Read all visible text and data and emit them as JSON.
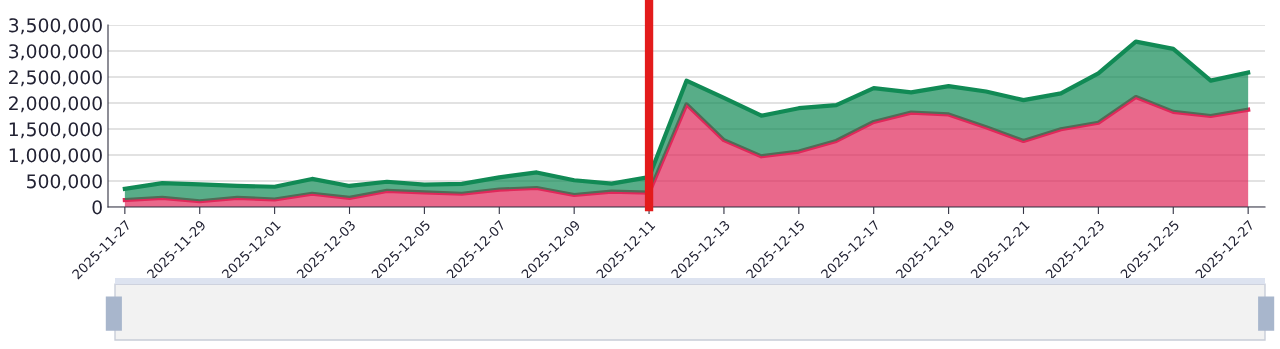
{
  "chart_data": {
    "type": "area",
    "stacked": true,
    "categories": [
      "2025-11-27",
      null,
      "2025-11-29",
      null,
      "2025-12-01",
      null,
      "2025-12-03",
      null,
      "2025-12-05",
      null,
      "2025-12-07",
      null,
      "2025-12-09",
      null,
      "2025-12-11",
      null,
      "2025-12-13",
      null,
      "2025-12-15",
      null,
      "2025-12-17",
      null,
      "2025-12-19",
      null,
      "2025-12-21",
      null,
      "2025-12-23",
      null,
      "2025-12-25",
      null,
      "2025-12-27"
    ],
    "series": [
      {
        "color": "#e0285a",
        "values": [
          135000,
          175000,
          110000,
          175000,
          145000,
          255000,
          175000,
          310000,
          280000,
          255000,
          335000,
          365000,
          230000,
          295000,
          275000,
          1975000,
          1285000,
          975000,
          1065000,
          1270000,
          1635000,
          1815000,
          1780000,
          1535000,
          1270000,
          1495000,
          1620000,
          2115000,
          1830000,
          1750000,
          1870000
        ]
      },
      {
        "color": "#118a55",
        "values": [
          215000,
          285000,
          325000,
          230000,
          245000,
          285000,
          230000,
          175000,
          150000,
          190000,
          235000,
          300000,
          285000,
          155000,
          300000,
          455000,
          815000,
          780000,
          835000,
          690000,
          650000,
          390000,
          545000,
          685000,
          785000,
          690000,
          950000,
          1065000,
          1210000,
          680000,
          715000
        ]
      }
    ],
    "ylim": [
      0,
      3500000
    ],
    "yticks": [
      0,
      {
        "value": 500000,
        "label": "500,000"
      },
      {
        "value": 1000000,
        "label": "1,000,000"
      },
      {
        "value": 1500000,
        "label": "1,500,000"
      },
      {
        "value": 2000000,
        "label": "2,000,000"
      },
      {
        "value": 2500000,
        "label": "2,500,000"
      },
      {
        "value": 3000000,
        "label": "3,000,000"
      },
      {
        "value": 3500000,
        "label": "3,500,000"
      }
    ],
    "grid": "y",
    "marker": "none",
    "line_style": "solid",
    "ref_lines": [
      {
        "axis": "x",
        "value": "2025-12-11",
        "color": "#e31b1b",
        "line_style": "solid"
      }
    ]
  }
}
